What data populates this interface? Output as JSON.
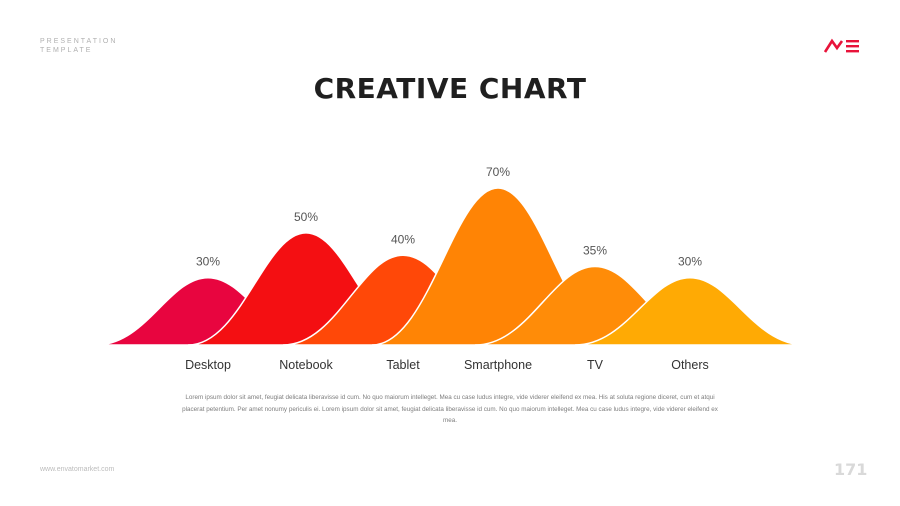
{
  "brand": {
    "tag": "PRESENTATION TEMPLATE",
    "logo_icon": "me-logo-icon",
    "logo_color": "#e8133a"
  },
  "header": {
    "title": "CREATIVE CHART"
  },
  "chart_data": {
    "type": "area",
    "categories": [
      "Desktop",
      "Notebook",
      "Tablet",
      "Smartphone",
      "TV",
      "Others"
    ],
    "values": [
      30,
      50,
      40,
      70,
      35,
      30
    ],
    "value_labels": [
      "30%",
      "50%",
      "40%",
      "70%",
      "35%",
      "30%"
    ],
    "colors": [
      "#e8053f",
      "#f40f12",
      "#ff4808",
      "#ff8405",
      "#ff8c08",
      "#ffaa04"
    ],
    "title": "",
    "xlabel": "",
    "ylabel": "",
    "ylim": [
      0,
      70
    ],
    "grid": false,
    "legend": "none"
  },
  "body": {
    "text": "Lorem ipsum dolor sit amet, feugiat delicata liberavisse id cum. No quo maiorum intelleget. Mea cu case ludus integre, vide viderer eleifend ex mea. His at soluta regione diceret, cum et atqui placerat petentium. Per amet nonumy periculis ei. Lorem ipsum dolor sit amet, feugiat delicata liberavisse id cum. No quo maiorum intelleget. Mea cu case ludus integre, vide viderer eleifend ex mea."
  },
  "footer": {
    "url": "www.envatomarket.com",
    "page_number": "171"
  }
}
